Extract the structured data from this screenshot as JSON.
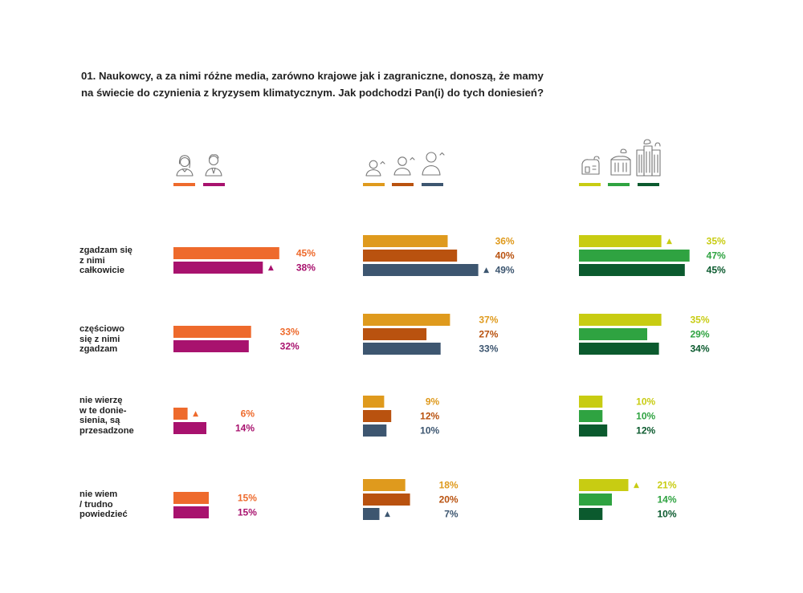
{
  "title_lines": [
    "01. Naukowcy, a za nimi różne media, zarówno krajowe jak i zagraniczne, donoszą, że mamy",
    "na świecie do czynienia z kryzysem klimatycznym. Jak podchodzi Pan(i) do tych doniesień?"
  ],
  "chart_data": {
    "type": "bar",
    "orientation": "horizontal",
    "categories": [
      [
        "zgadzam się",
        "z nimi",
        "całkowicie"
      ],
      [
        "częściowo",
        "się z nimi",
        "zgadzam"
      ],
      [
        "nie wierzę",
        "w te donie-",
        "sienia, są",
        "przesadzone"
      ],
      [
        "nie wiem",
        "/ trudno",
        "powiedzieć"
      ]
    ],
    "unit": "%",
    "groups": [
      {
        "legend": "gender",
        "series": [
          {
            "icon": "woman-icon",
            "color": "#EE6A2C",
            "values": [
              45,
              33,
              6,
              15
            ]
          },
          {
            "icon": "man-icon",
            "color": "#A8126E",
            "values": [
              38,
              32,
              14,
              15
            ]
          }
        ]
      },
      {
        "legend": "age",
        "series": [
          {
            "icon": "young-person-icon",
            "color": "#DF9A1D",
            "values": [
              36,
              37,
              9,
              18
            ]
          },
          {
            "icon": "middle-aged-person-icon",
            "color": "#B9520F",
            "values": [
              40,
              27,
              12,
              20
            ]
          },
          {
            "icon": "older-person-icon",
            "color": "#3D5670",
            "values": [
              49,
              33,
              10,
              7
            ]
          }
        ]
      },
      {
        "legend": "place of residence",
        "series": [
          {
            "icon": "village-icon",
            "color": "#C8CC12",
            "values": [
              35,
              35,
              10,
              21
            ]
          },
          {
            "icon": "town-icon",
            "color": "#2FA341",
            "values": [
              47,
              29,
              10,
              14
            ]
          },
          {
            "icon": "city-icon",
            "color": "#0B5A2E",
            "values": [
              45,
              34,
              12,
              10
            ]
          }
        ]
      }
    ],
    "markers": [
      {
        "group": 0,
        "series": 1,
        "row": 0,
        "symbol": "▲"
      },
      {
        "group": 0,
        "series": 0,
        "row": 2,
        "symbol": "▲"
      },
      {
        "group": 1,
        "series": 2,
        "row": 0,
        "symbol": "▲"
      },
      {
        "group": 1,
        "series": 2,
        "row": 3,
        "symbol": "▲"
      },
      {
        "group": 2,
        "series": 0,
        "row": 0,
        "symbol": "▲"
      },
      {
        "group": 2,
        "series": 0,
        "row": 3,
        "symbol": "▲"
      }
    ]
  }
}
